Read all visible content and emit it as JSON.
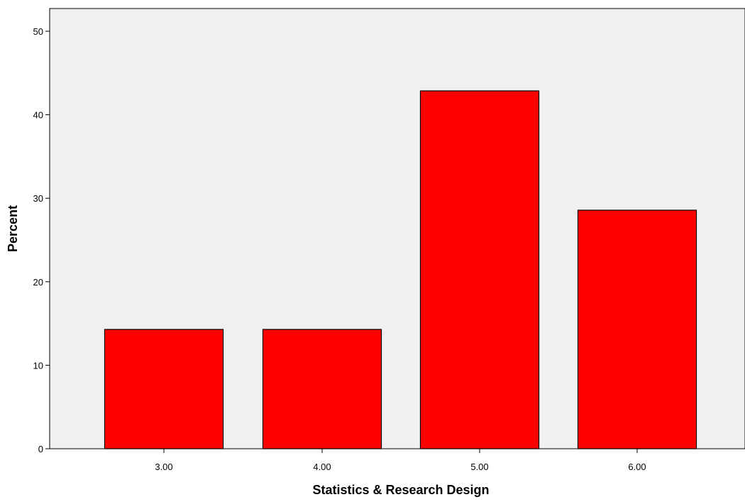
{
  "chart_data": {
    "type": "bar",
    "title": "",
    "xlabel": "Statistics & Research Design",
    "ylabel": "Percent",
    "categories": [
      "3.00",
      "4.00",
      "5.00",
      "6.00"
    ],
    "values": [
      14.29,
      14.29,
      42.86,
      28.57
    ],
    "ylim": [
      0,
      50
    ],
    "yticks": [
      0,
      10,
      20,
      30,
      40,
      50
    ],
    "grid": false,
    "legend": "none",
    "colors": {
      "bar_fill": "#ff0000",
      "bar_stroke": "#000000",
      "plot_background": "#f0f0f0",
      "axis": "#000000"
    }
  }
}
